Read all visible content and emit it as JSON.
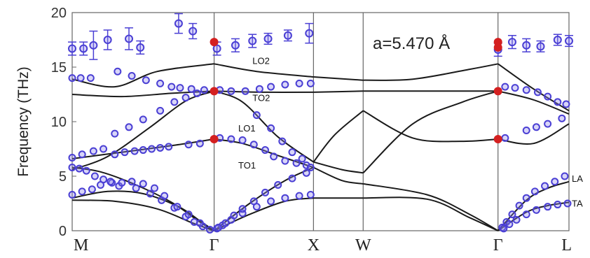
{
  "chart_data": {
    "type": "line",
    "ylabel": "Frequency (THz)",
    "ylim": [
      0,
      20
    ],
    "yticks": [
      0,
      5,
      10,
      15,
      20
    ],
    "grid": false,
    "xticks": [
      {
        "label": "M",
        "x": 0
      },
      {
        "label": "Γ",
        "x": 1
      },
      {
        "label": "X",
        "x": 1.7
      },
      {
        "label": "W",
        "x": 2.05
      },
      {
        "label": "Γ",
        "x": 3.0
      },
      {
        "label": "L",
        "x": 3.5
      }
    ],
    "vlines": [
      1,
      1.7,
      2.05,
      3.0
    ],
    "xlim": [
      0,
      3.5
    ],
    "annotation": "a=5.470 Å",
    "band_labels": [
      {
        "text": "LO2",
        "x": 1.27,
        "y": 15.3
      },
      {
        "text": "TO2",
        "x": 1.27,
        "y": 11.9
      },
      {
        "text": "LO1",
        "x": 1.17,
        "y": 9.1
      },
      {
        "text": "TO1",
        "x": 1.17,
        "y": 5.7
      },
      {
        "text": "LA",
        "x": 3.52,
        "y": 4.5
      },
      {
        "text": "TA",
        "x": 3.52,
        "y": 2.2
      }
    ],
    "series": [
      {
        "values": [
          [
            0,
            5.8
          ],
          [
            0.2,
            5.4
          ],
          [
            0.45,
            4.2
          ],
          [
            0.7,
            2.6
          ],
          [
            0.9,
            0.8
          ],
          [
            1,
            0
          ]
        ]
      },
      {
        "values": [
          [
            0,
            3.0
          ],
          [
            0.25,
            3.6
          ],
          [
            0.5,
            3.4
          ],
          [
            0.75,
            2.2
          ],
          [
            0.9,
            0.9
          ],
          [
            1,
            0
          ]
        ]
      },
      {
        "values": [
          [
            0,
            2.8
          ],
          [
            0.3,
            2.7
          ],
          [
            0.6,
            2.0
          ],
          [
            0.85,
            0.7
          ],
          [
            1,
            0
          ]
        ]
      },
      {
        "values": [
          [
            0,
            6.6
          ],
          [
            0.35,
            7.2
          ],
          [
            0.7,
            7.8
          ],
          [
            1,
            8.4
          ]
        ]
      },
      {
        "values": [
          [
            0,
            12.5
          ],
          [
            0.35,
            12.3
          ],
          [
            0.7,
            12.6
          ],
          [
            1,
            12.8
          ]
        ]
      },
      {
        "values": [
          [
            0,
            13.9
          ],
          [
            0.3,
            13.2
          ],
          [
            0.6,
            14.6
          ],
          [
            1,
            15.3
          ]
        ]
      },
      {
        "values": [
          [
            0,
            5.6
          ],
          [
            0.25,
            6.8
          ],
          [
            0.55,
            9.5
          ],
          [
            0.8,
            11.9
          ],
          [
            1,
            12.8
          ]
        ]
      },
      {
        "values": [
          [
            1,
            0
          ],
          [
            1.25,
            2.5
          ],
          [
            1.5,
            4.6
          ],
          [
            1.7,
            5.8
          ]
        ]
      },
      {
        "values": [
          [
            1,
            0
          ],
          [
            1.25,
            1.5
          ],
          [
            1.5,
            2.7
          ],
          [
            1.7,
            3.0
          ]
        ]
      },
      {
        "values": [
          [
            1,
            8.4
          ],
          [
            1.2,
            8.0
          ],
          [
            1.45,
            6.9
          ],
          [
            1.7,
            5.8
          ]
        ]
      },
      {
        "values": [
          [
            1,
            12.8
          ],
          [
            1.2,
            11.8
          ],
          [
            1.45,
            8.6
          ],
          [
            1.7,
            6.3
          ]
        ]
      },
      {
        "values": [
          [
            1,
            15.3
          ],
          [
            1.3,
            14.6
          ],
          [
            1.7,
            14.1
          ]
        ]
      },
      {
        "values": [
          [
            1,
            12.8
          ],
          [
            1.35,
            12.7
          ],
          [
            1.7,
            12.7
          ]
        ]
      },
      {
        "values": [
          [
            1.7,
            14.1
          ],
          [
            2.05,
            13.8
          ]
        ]
      },
      {
        "values": [
          [
            1.7,
            12.7
          ],
          [
            2.05,
            12.8
          ]
        ]
      },
      {
        "values": [
          [
            1.7,
            6.3
          ],
          [
            1.85,
            8.8
          ],
          [
            2.05,
            11.0
          ]
        ]
      },
      {
        "values": [
          [
            1.7,
            6.3
          ],
          [
            1.9,
            5.6
          ],
          [
            2.05,
            5.3
          ]
        ]
      },
      {
        "values": [
          [
            1.7,
            5.8
          ],
          [
            1.9,
            4.6
          ],
          [
            2.05,
            4.3
          ]
        ]
      },
      {
        "values": [
          [
            1.7,
            3.0
          ],
          [
            1.9,
            3.0
          ],
          [
            2.05,
            3.0
          ]
        ]
      },
      {
        "values": [
          [
            2.05,
            13.8
          ],
          [
            2.4,
            13.9
          ],
          [
            2.8,
            14.8
          ],
          [
            3.0,
            15.3
          ]
        ]
      },
      {
        "values": [
          [
            2.05,
            12.8
          ],
          [
            2.5,
            12.8
          ],
          [
            3.0,
            12.8
          ]
        ]
      },
      {
        "values": [
          [
            2.05,
            11.0
          ],
          [
            2.4,
            8.5
          ],
          [
            2.75,
            8.2
          ],
          [
            3.0,
            8.4
          ]
        ]
      },
      {
        "values": [
          [
            2.05,
            5.3
          ],
          [
            2.4,
            9.8
          ],
          [
            2.75,
            11.8
          ],
          [
            3.0,
            12.8
          ]
        ]
      },
      {
        "values": [
          [
            2.05,
            4.3
          ],
          [
            2.5,
            3.3
          ],
          [
            2.8,
            1.5
          ],
          [
            3.0,
            0
          ]
        ]
      },
      {
        "values": [
          [
            2.05,
            3.0
          ],
          [
            2.5,
            2.9
          ],
          [
            2.8,
            1.2
          ],
          [
            3.0,
            0
          ]
        ]
      },
      {
        "values": [
          [
            3.0,
            15.3
          ],
          [
            3.25,
            13.0
          ],
          [
            3.5,
            11.0
          ]
        ]
      },
      {
        "values": [
          [
            3.0,
            12.8
          ],
          [
            3.25,
            12.0
          ],
          [
            3.5,
            10.7
          ]
        ]
      },
      {
        "values": [
          [
            3.0,
            8.4
          ],
          [
            3.25,
            8.0
          ],
          [
            3.5,
            9.8
          ]
        ]
      },
      {
        "values": [
          [
            3.0,
            0
          ],
          [
            3.2,
            2.8
          ],
          [
            3.35,
            3.9
          ],
          [
            3.5,
            4.5
          ]
        ]
      },
      {
        "values": [
          [
            3.0,
            0
          ],
          [
            3.2,
            1.7
          ],
          [
            3.35,
            2.3
          ],
          [
            3.5,
            2.6
          ]
        ]
      }
    ],
    "red_points": [
      [
        1,
        17.3
      ],
      [
        1,
        12.8
      ],
      [
        1,
        8.4
      ],
      [
        3.0,
        17.3
      ],
      [
        3.0,
        16.8
      ],
      [
        3.0,
        12.8
      ],
      [
        3.0,
        8.4
      ]
    ],
    "errorbar_points": [
      {
        "x": 0,
        "y": 16.7,
        "err": 0.6
      },
      {
        "x": 0.08,
        "y": 16.7,
        "err": 0.6
      },
      {
        "x": 0.15,
        "y": 17.0,
        "err": 1.3
      },
      {
        "x": 0.25,
        "y": 17.5,
        "err": 0.9
      },
      {
        "x": 0.4,
        "y": 17.6,
        "err": 1.0
      },
      {
        "x": 0.48,
        "y": 16.8,
        "err": 0.6
      },
      {
        "x": 0.75,
        "y": 19.0,
        "err": 0.9
      },
      {
        "x": 0.85,
        "y": 18.3,
        "err": 0.7
      },
      {
        "x": 1.02,
        "y": 16.7,
        "err": 0.6
      },
      {
        "x": 1.15,
        "y": 17.0,
        "err": 0.6
      },
      {
        "x": 1.27,
        "y": 17.4,
        "err": 0.6
      },
      {
        "x": 1.38,
        "y": 17.6,
        "err": 0.5
      },
      {
        "x": 1.52,
        "y": 17.9,
        "err": 0.5
      },
      {
        "x": 1.67,
        "y": 18.1,
        "err": 0.9
      },
      {
        "x": 3.0,
        "y": 16.6,
        "err": 0.6
      },
      {
        "x": 3.1,
        "y": 17.3,
        "err": 0.6
      },
      {
        "x": 3.2,
        "y": 17.0,
        "err": 0.6
      },
      {
        "x": 3.3,
        "y": 16.9,
        "err": 0.5
      },
      {
        "x": 3.42,
        "y": 17.5,
        "err": 0.5
      },
      {
        "x": 3.5,
        "y": 17.4,
        "err": 0.5
      }
    ],
    "points": [
      [
        0,
        14.0
      ],
      [
        0.06,
        14.0
      ],
      [
        0.13,
        14.0
      ],
      [
        0.32,
        14.6
      ],
      [
        0.42,
        14.2
      ],
      [
        0.52,
        13.8
      ],
      [
        0.62,
        13.5
      ],
      [
        0.7,
        13.2
      ],
      [
        0.76,
        13.1
      ],
      [
        0.84,
        13.0
      ],
      [
        0.93,
        12.9
      ],
      [
        0,
        6.7
      ],
      [
        0.07,
        7.0
      ],
      [
        0.15,
        7.3
      ],
      [
        0.22,
        7.5
      ],
      [
        0.3,
        7.0
      ],
      [
        0.37,
        7.2
      ],
      [
        0.44,
        7.3
      ],
      [
        0.5,
        7.4
      ],
      [
        0.56,
        7.5
      ],
      [
        0.62,
        7.6
      ],
      [
        0.68,
        7.7
      ],
      [
        0.82,
        7.9
      ],
      [
        0.9,
        8.0
      ],
      [
        0,
        5.8
      ],
      [
        0.05,
        5.7
      ],
      [
        0.1,
        5.5
      ],
      [
        0.16,
        5.0
      ],
      [
        0.22,
        4.7
      ],
      [
        0.28,
        4.4
      ],
      [
        0.33,
        4.1
      ],
      [
        0.45,
        3.9
      ],
      [
        0.55,
        3.4
      ],
      [
        0.63,
        2.8
      ],
      [
        0.72,
        2.1
      ],
      [
        0.8,
        1.3
      ],
      [
        0.86,
        0.8
      ],
      [
        0.92,
        0.4
      ],
      [
        0.97,
        0.1
      ],
      [
        0,
        3.3
      ],
      [
        0.07,
        3.6
      ],
      [
        0.14,
        3.8
      ],
      [
        0.2,
        4.2
      ],
      [
        0.27,
        4.5
      ],
      [
        0.35,
        4.4
      ],
      [
        0.42,
        4.5
      ],
      [
        0.5,
        4.3
      ],
      [
        0.58,
        3.9
      ],
      [
        0.65,
        3.2
      ],
      [
        0.74,
        2.2
      ],
      [
        0.82,
        1.5
      ],
      [
        0.9,
        0.7
      ],
      [
        0.3,
        8.9
      ],
      [
        0.4,
        9.5
      ],
      [
        0.5,
        10.2
      ],
      [
        0.62,
        11.0
      ],
      [
        0.72,
        11.8
      ],
      [
        0.8,
        12.2
      ],
      [
        0.88,
        12.6
      ],
      [
        1.04,
        12.9
      ],
      [
        1.12,
        12.8
      ],
      [
        1.22,
        12.8
      ],
      [
        1.32,
        13.0
      ],
      [
        1.4,
        13.2
      ],
      [
        1.5,
        13.4
      ],
      [
        1.6,
        13.5
      ],
      [
        1.68,
        13.5
      ],
      [
        1.04,
        8.5
      ],
      [
        1.12,
        8.4
      ],
      [
        1.2,
        8.3
      ],
      [
        1.28,
        7.9
      ],
      [
        1.36,
        7.4
      ],
      [
        1.42,
        6.8
      ],
      [
        1.5,
        6.4
      ],
      [
        1.58,
        6.2
      ],
      [
        1.65,
        6.0
      ],
      [
        1.3,
        10.6
      ],
      [
        1.4,
        9.4
      ],
      [
        1.48,
        8.2
      ],
      [
        1.55,
        7.2
      ],
      [
        1.62,
        6.6
      ],
      [
        1.68,
        5.8
      ],
      [
        1.02,
        0.2
      ],
      [
        1.06,
        0.5
      ],
      [
        1.12,
        1.0
      ],
      [
        1.2,
        1.6
      ],
      [
        1.3,
        2.2
      ],
      [
        1.4,
        2.7
      ],
      [
        1.5,
        3.0
      ],
      [
        1.6,
        3.2
      ],
      [
        1.68,
        3.3
      ],
      [
        1.03,
        0.3
      ],
      [
        1.08,
        0.7
      ],
      [
        1.14,
        1.4
      ],
      [
        1.2,
        2.0
      ],
      [
        1.28,
        2.7
      ],
      [
        1.36,
        3.5
      ],
      [
        1.45,
        4.2
      ],
      [
        1.55,
        4.8
      ],
      [
        1.65,
        5.3
      ],
      [
        3.05,
        13.2
      ],
      [
        3.12,
        13.1
      ],
      [
        3.2,
        12.9
      ],
      [
        3.28,
        12.7
      ],
      [
        3.35,
        12.3
      ],
      [
        3.42,
        11.8
      ],
      [
        3.48,
        11.6
      ],
      [
        3.05,
        8.5
      ],
      [
        3.2,
        9.2
      ],
      [
        3.27,
        9.5
      ],
      [
        3.35,
        9.8
      ],
      [
        3.45,
        10.3
      ],
      [
        3.03,
        0.3
      ],
      [
        3.06,
        0.8
      ],
      [
        3.1,
        1.5
      ],
      [
        3.15,
        2.3
      ],
      [
        3.2,
        3.0
      ],
      [
        3.26,
        3.6
      ],
      [
        3.33,
        4.1
      ],
      [
        3.4,
        4.5
      ],
      [
        3.47,
        5.0
      ],
      [
        3.04,
        0.2
      ],
      [
        3.08,
        0.6
      ],
      [
        3.13,
        1.0
      ],
      [
        3.2,
        1.5
      ],
      [
        3.27,
        1.9
      ],
      [
        3.35,
        2.2
      ],
      [
        3.42,
        2.4
      ],
      [
        3.49,
        2.5
      ]
    ],
    "colors": {
      "line": "#1a1a1a",
      "marker": "#4a3fd4",
      "marker_fill": "#8e87ea",
      "red": "#d42020",
      "axis": "#666666"
    }
  }
}
